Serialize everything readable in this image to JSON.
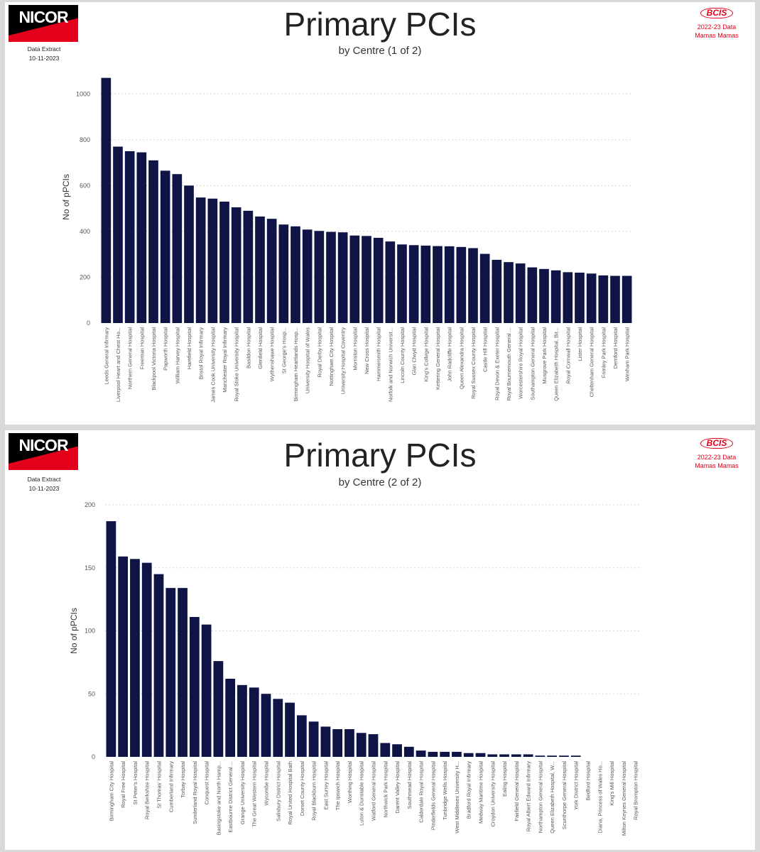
{
  "panels": [
    {
      "logo_text": "NICOR",
      "extract_label": "Data Extract",
      "extract_date": "10-11-2023",
      "title": "Primary PCIs",
      "subtitle": "by Centre (1 of 2)",
      "bcis_logo": "BCIS",
      "bcis_line1": "2022-23 Data",
      "bcis_line2": "Mamas Mamas"
    },
    {
      "logo_text": "NICOR",
      "extract_label": "Data Extract",
      "extract_date": "10-11-2023",
      "title": "Primary PCIs",
      "subtitle": "by Centre (2 of 2)",
      "bcis_logo": "BCIS",
      "bcis_line1": "2022-23 Data",
      "bcis_line2": "Mamas Mamas"
    }
  ],
  "colors": {
    "bar": "#0f1446",
    "grid": "#d8d8d8",
    "accent_red": "#e3001b"
  },
  "chart_data": [
    {
      "type": "bar",
      "title": "Primary PCIs",
      "subtitle": "by Centre (1 of 2)",
      "xlabel": "",
      "ylabel": "No of pPCIs",
      "ylim": [
        0,
        1100
      ],
      "yticks": [
        0,
        200,
        400,
        600,
        800,
        1000
      ],
      "grid": true,
      "categories": [
        "Leeds General Infirmary",
        "Liverpool Heart and Chest Ho...",
        "Northern General Hospital",
        "Freeman Hospital",
        "Blackpool Victoria Hospital",
        "Papworth Hospital",
        "William Harvey Hospital",
        "Harefield Hospital",
        "Bristol Royal Infirmary",
        "James Cook University Hospital",
        "Manchester Royal Infirmary",
        "Royal Stoke University Hospital",
        "Basildon Hospital",
        "Glenfield Hospital",
        "Wythenshawe Hospital",
        "St George's Hosp...",
        "Birmingham Heartlands Hosp...",
        "University Hospital of Wales",
        "Royal Derby Hospital",
        "Nottingham City Hospital",
        "University Hospital Coventry",
        "Morriston Hospital",
        "New Cross Hospital",
        "Hammersmith Hospital",
        "Norfolk and Norwich Universit...",
        "Lincoln County Hospital",
        "Glan Clwyd Hospital",
        "King's College Hospital",
        "Kettering General Hospital",
        "John Radcliffe Hospital",
        "Queen Alexandra Hospital",
        "Royal Sussex County Hospital",
        "Castle Hill Hospital",
        "Royal Devon & Exeter Hospital",
        "Royal Bournemouth General ...",
        "Worcestershire Royal Hospital",
        "Southampton General Hospital",
        "Musgrove Park Hospital",
        "Queen Elizabeth Hospital, Bir...",
        "Royal Cornwall Hospital",
        "Lister Hospital",
        "Cheltenham General Hospital",
        "Frimley Park Hospital",
        "Derriford Hospital",
        "Wexham Park Hospital"
      ],
      "values": [
        1070,
        770,
        750,
        745,
        710,
        665,
        650,
        600,
        548,
        543,
        530,
        505,
        490,
        465,
        455,
        430,
        422,
        408,
        402,
        398,
        396,
        382,
        380,
        372,
        356,
        343,
        340,
        338,
        336,
        335,
        332,
        327,
        302,
        276,
        266,
        260,
        243,
        236,
        230,
        222,
        220,
        216,
        208,
        206,
        206
      ]
    },
    {
      "type": "bar",
      "title": "Primary PCIs",
      "subtitle": "by Centre (2 of 2)",
      "xlabel": "",
      "ylabel": "No of pPCIs",
      "ylim": [
        0,
        200
      ],
      "yticks": [
        0,
        50,
        100,
        150,
        200
      ],
      "grid": true,
      "categories": [
        "Birmingham City Hospital",
        "Royal Free Hospital",
        "St Peter's Hospital",
        "Royal Berkshire Hospital",
        "St Thomas' Hospital",
        "Cumberland Infirmary",
        "Torbay Hospital",
        "Sunderland Royal Hospital",
        "Conquest Hospital",
        "Basingstoke and North Hamp...",
        "Eastbourne District General ...",
        "Grange University Hospital",
        "The Great Western Hospital",
        "Wycombe Hospital",
        "Salisbury District Hospital",
        "Royal United Hospital Bath",
        "Dorset County Hospital",
        "Royal Blackburn Hospital",
        "East Surrey Hospital",
        "The Ipswich Hospital",
        "Worthing Hospital",
        "Luton & Dunstable Hospital",
        "Watford General Hospital",
        "Northwick Park Hospital",
        "Darent Valley Hospital",
        "Southmead Hospital",
        "Calderdale Royal Hospital",
        "Pinderfields General Hospital",
        "Tunbridge Wells Hospital",
        "West Middlesex University H...",
        "Bradford Royal Infirmary",
        "Medway Maritime Hospital",
        "Croydon University Hospital",
        "Ealing Hospital",
        "Fairfield General Hospital",
        "Royal Albert Edward Infirmary",
        "Northampton General Hospital",
        "Queen Elizabeth Hospital, W...",
        "Scunthorpe General Hospital",
        "York District Hospital",
        "Bedford Hospital",
        "Diana, Princess of Wales Ho...",
        "King's Mill Hospital",
        "Milton Keynes General Hospital",
        "Royal Brompton Hospital"
      ],
      "values": [
        187,
        159,
        157,
        154,
        145,
        134,
        134,
        111,
        105,
        76,
        62,
        57,
        55,
        50,
        46,
        43,
        33,
        28,
        24,
        22,
        22,
        19,
        18,
        11,
        10,
        8,
        5,
        4,
        4,
        4,
        3,
        3,
        2,
        2,
        2,
        2,
        1,
        1,
        1,
        1,
        0,
        0,
        0,
        0,
        0
      ]
    }
  ]
}
